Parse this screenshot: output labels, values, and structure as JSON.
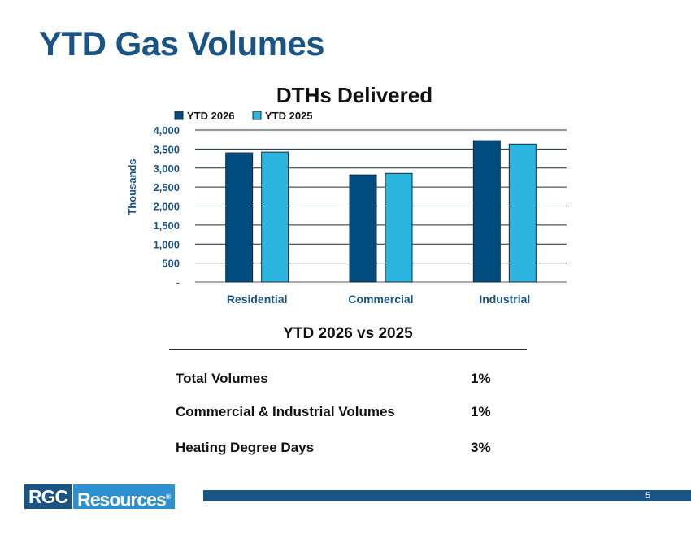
{
  "slide": {
    "title": "YTD Gas Volumes",
    "page_number": "5",
    "logo": {
      "part1": "RGC",
      "part2": "Resources",
      "mark": "®"
    }
  },
  "colors": {
    "title": "#1a5485",
    "series_2026": "#004c7e",
    "series_2025": "#2cb5de",
    "footer_bar": "#1a5485",
    "logo_dark": "#1a5485",
    "logo_light": "#2f8fcf",
    "axis_text": "#1a5485"
  },
  "chart_data": {
    "type": "bar",
    "title": "DTHs Delivered",
    "xlabel": "",
    "ylabel": "Thousands",
    "categories": [
      "Residential",
      "Commercial",
      "Industrial"
    ],
    "series": [
      {
        "name": "YTD 2026",
        "values": [
          3400,
          2820,
          3720
        ]
      },
      {
        "name": "YTD 2025",
        "values": [
          3420,
          2860,
          3630
        ]
      }
    ],
    "ylim": [
      0,
      4000
    ],
    "yticks": [
      {
        "value": 0,
        "label": "-"
      },
      {
        "value": 500,
        "label": "500"
      },
      {
        "value": 1000,
        "label": "1,000"
      },
      {
        "value": 1500,
        "label": "1,500"
      },
      {
        "value": 2000,
        "label": "2,000"
      },
      {
        "value": 2500,
        "label": "2,500"
      },
      {
        "value": 3000,
        "label": "3,000"
      },
      {
        "value": 3500,
        "label": "3,500"
      },
      {
        "value": 4000,
        "label": "4,000"
      }
    ],
    "grid": true,
    "legend": "top-left"
  },
  "comparison": {
    "title": "YTD 2026 vs 2025",
    "rows": [
      {
        "metric": "Total Volumes",
        "change": "1%"
      },
      {
        "metric": "Commercial & Industrial Volumes",
        "change": "1%"
      },
      {
        "metric": "Heating Degree Days",
        "change": "3%"
      }
    ]
  }
}
